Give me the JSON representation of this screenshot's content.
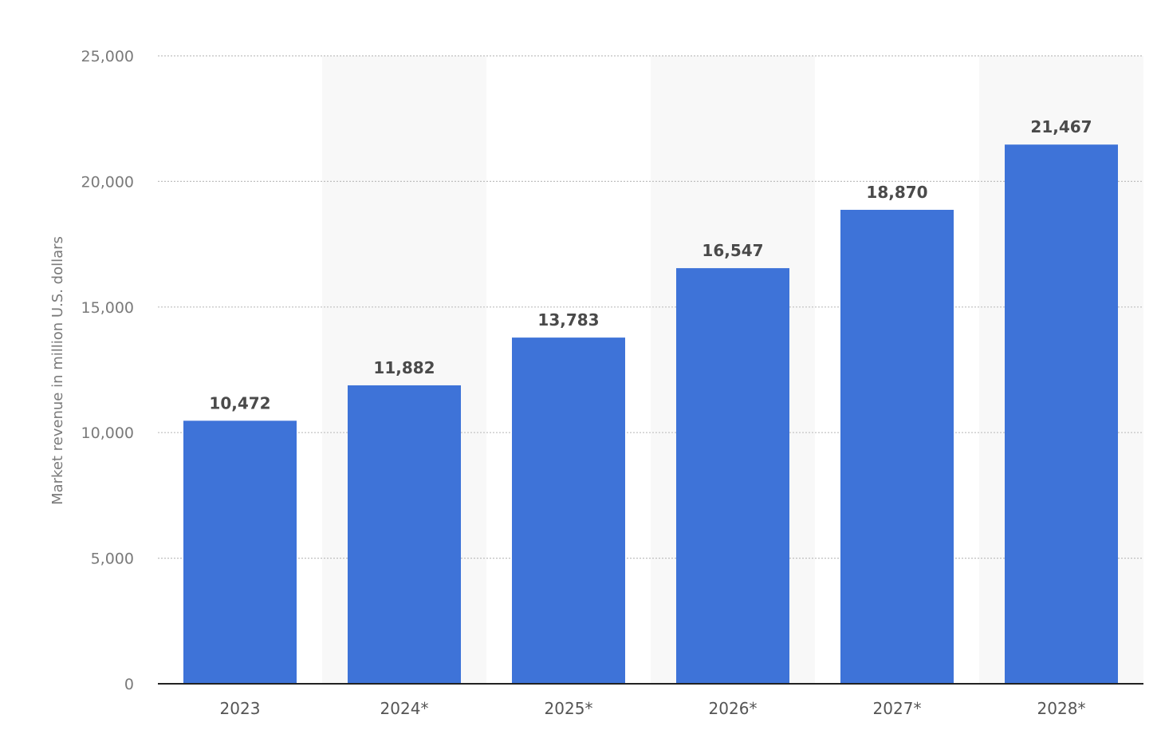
{
  "chart_data": {
    "type": "bar",
    "categories": [
      "2023",
      "2024*",
      "2025*",
      "2026*",
      "2027*",
      "2028*"
    ],
    "values": [
      10472,
      11882,
      13783,
      16547,
      18870,
      21467
    ],
    "value_labels": [
      "10,472",
      "11,882",
      "13,783",
      "16,547",
      "18,870",
      "21,467"
    ],
    "title": "",
    "xlabel": "",
    "ylabel": "Market revenue in million U.S. dollars",
    "ylim": [
      0,
      25000
    ],
    "yticks": [
      0,
      5000,
      10000,
      15000,
      20000,
      25000
    ],
    "ytick_labels": [
      "0",
      "5,000",
      "10,000",
      "15,000",
      "20,000",
      "25,000"
    ],
    "grid": true,
    "legend": "none",
    "colors": {
      "bar": "#3e73d8",
      "band": "#f8f8f8",
      "grid": "#bfbfbf",
      "axis": "#222222"
    }
  }
}
